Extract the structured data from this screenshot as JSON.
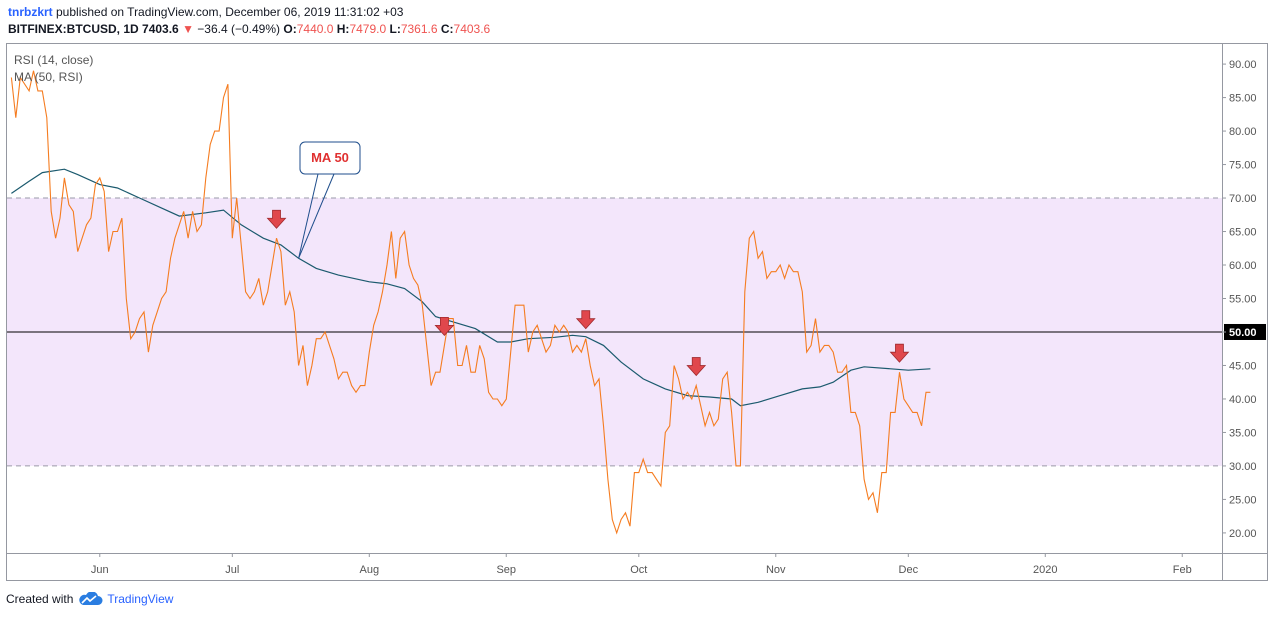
{
  "header": {
    "author": "tnrbzkrt",
    "published_text": " published on TradingView.com, December 06, 2019 11:31:02 +03",
    "symbol": "BITFINEX:BTCUSD, 1D",
    "price": "7403.6",
    "change": "−36.4 (−0.49%)",
    "o_label": "O:",
    "o": "7440.0",
    "h_label": "H:",
    "h": "7479.0",
    "l_label": "L:",
    "l": "7361.6",
    "c_label": "C:",
    "c": "7403.6"
  },
  "footer": {
    "created_with": "Created with",
    "brand": "TradingView"
  },
  "colors": {
    "rsi": "#f57c20",
    "ma": "#1b5a6e",
    "band": "#f3e6fb",
    "marker": "#e0474c",
    "accent": "#2962ff"
  },
  "chart_data": {
    "type": "line",
    "legend": [
      "RSI (14, close)",
      "MA (50, RSI)"
    ],
    "callout": "MA 50",
    "ylim": [
      17,
      93
    ],
    "yticks": [
      "20.00",
      "25.00",
      "30.00",
      "35.00",
      "40.00",
      "45.00",
      "50.00",
      "55.00",
      "60.00",
      "65.00",
      "70.00",
      "75.00",
      "80.00",
      "85.00",
      "90.00"
    ],
    "highlight_tick": "50.00",
    "bands": {
      "upper": 70,
      "lower": 30,
      "middle": 50
    },
    "x_axis": [
      {
        "label": "Jun",
        "date": "2019-06-01"
      },
      {
        "label": "Jul",
        "date": "2019-07-01"
      },
      {
        "label": "Aug",
        "date": "2019-08-01"
      },
      {
        "label": "Sep",
        "date": "2019-09-01"
      },
      {
        "label": "Oct",
        "date": "2019-10-01"
      },
      {
        "label": "Nov",
        "date": "2019-11-01"
      },
      {
        "label": "Dec",
        "date": "2019-12-01"
      },
      {
        "label": "2020",
        "date": "2020-01-01"
      },
      {
        "label": "Feb",
        "date": "2020-02-01"
      }
    ],
    "x_range": [
      "2019-05-11",
      "2020-02-10"
    ],
    "series": [
      {
        "name": "RSI (14, close)",
        "points": [
          [
            "2019-05-12",
            88
          ],
          [
            "2019-05-13",
            82
          ],
          [
            "2019-05-14",
            88
          ],
          [
            "2019-05-16",
            86
          ],
          [
            "2019-05-17",
            89
          ],
          [
            "2019-05-18",
            86
          ],
          [
            "2019-05-19",
            86
          ],
          [
            "2019-05-20",
            82
          ],
          [
            "2019-05-21",
            68
          ],
          [
            "2019-05-22",
            64
          ],
          [
            "2019-05-23",
            67
          ],
          [
            "2019-05-24",
            73
          ],
          [
            "2019-05-25",
            69
          ],
          [
            "2019-05-26",
            68
          ],
          [
            "2019-05-27",
            62
          ],
          [
            "2019-05-28",
            64
          ],
          [
            "2019-05-29",
            66
          ],
          [
            "2019-05-30",
            67
          ],
          [
            "2019-05-31",
            72
          ],
          [
            "2019-06-01",
            73
          ],
          [
            "2019-06-02",
            71
          ],
          [
            "2019-06-03",
            62
          ],
          [
            "2019-06-04",
            65
          ],
          [
            "2019-06-05",
            65
          ],
          [
            "2019-06-06",
            67
          ],
          [
            "2019-06-07",
            55
          ],
          [
            "2019-06-08",
            49
          ],
          [
            "2019-06-09",
            50
          ],
          [
            "2019-06-10",
            52
          ],
          [
            "2019-06-11",
            53
          ],
          [
            "2019-06-12",
            47
          ],
          [
            "2019-06-13",
            51
          ],
          [
            "2019-06-14",
            53
          ],
          [
            "2019-06-15",
            55
          ],
          [
            "2019-06-16",
            56
          ],
          [
            "2019-06-17",
            61
          ],
          [
            "2019-06-18",
            64
          ],
          [
            "2019-06-19",
            66
          ],
          [
            "2019-06-20",
            68
          ],
          [
            "2019-06-21",
            64
          ],
          [
            "2019-06-22",
            68
          ],
          [
            "2019-06-23",
            65
          ],
          [
            "2019-06-24",
            66
          ],
          [
            "2019-06-25",
            73
          ],
          [
            "2019-06-26",
            78
          ],
          [
            "2019-06-27",
            80
          ],
          [
            "2019-06-28",
            80
          ],
          [
            "2019-06-29",
            85
          ],
          [
            "2019-06-30",
            87
          ],
          [
            "2019-07-01",
            64
          ],
          [
            "2019-07-02",
            70
          ],
          [
            "2019-07-03",
            63
          ],
          [
            "2019-07-04",
            56
          ],
          [
            "2019-07-05",
            55
          ],
          [
            "2019-07-06",
            56
          ],
          [
            "2019-07-07",
            58
          ],
          [
            "2019-07-08",
            54
          ],
          [
            "2019-07-09",
            56
          ],
          [
            "2019-07-10",
            60
          ],
          [
            "2019-07-11",
            64
          ],
          [
            "2019-07-12",
            62
          ],
          [
            "2019-07-13",
            54
          ],
          [
            "2019-07-14",
            56
          ],
          [
            "2019-07-15",
            53
          ],
          [
            "2019-07-16",
            45
          ],
          [
            "2019-07-17",
            48
          ],
          [
            "2019-07-18",
            42
          ],
          [
            "2019-07-19",
            45
          ],
          [
            "2019-07-20",
            49
          ],
          [
            "2019-07-21",
            49
          ],
          [
            "2019-07-22",
            50
          ],
          [
            "2019-07-23",
            48
          ],
          [
            "2019-07-24",
            46
          ],
          [
            "2019-07-25",
            43
          ],
          [
            "2019-07-26",
            44
          ],
          [
            "2019-07-27",
            44
          ],
          [
            "2019-07-28",
            42
          ],
          [
            "2019-07-29",
            41
          ],
          [
            "2019-07-30",
            42
          ],
          [
            "2019-07-31",
            42
          ],
          [
            "2019-08-01",
            47
          ],
          [
            "2019-08-02",
            51
          ],
          [
            "2019-08-03",
            53
          ],
          [
            "2019-08-04",
            56
          ],
          [
            "2019-08-05",
            60
          ],
          [
            "2019-08-06",
            65
          ],
          [
            "2019-08-07",
            58
          ],
          [
            "2019-08-08",
            64
          ],
          [
            "2019-08-09",
            65
          ],
          [
            "2019-08-10",
            60
          ],
          [
            "2019-08-11",
            58
          ],
          [
            "2019-08-12",
            57
          ],
          [
            "2019-08-13",
            54
          ],
          [
            "2019-08-14",
            48
          ],
          [
            "2019-08-15",
            42
          ],
          [
            "2019-08-16",
            44
          ],
          [
            "2019-08-17",
            44
          ],
          [
            "2019-08-18",
            48
          ],
          [
            "2019-08-19",
            52
          ],
          [
            "2019-08-20",
            52
          ],
          [
            "2019-08-21",
            45
          ],
          [
            "2019-08-22",
            45
          ],
          [
            "2019-08-23",
            48
          ],
          [
            "2019-08-24",
            44
          ],
          [
            "2019-08-25",
            44
          ],
          [
            "2019-08-26",
            48
          ],
          [
            "2019-08-27",
            46
          ],
          [
            "2019-08-28",
            41
          ],
          [
            "2019-08-29",
            40
          ],
          [
            "2019-08-30",
            40
          ],
          [
            "2019-08-31",
            39
          ],
          [
            "2019-09-01",
            40
          ],
          [
            "2019-09-02",
            47
          ],
          [
            "2019-09-03",
            54
          ],
          [
            "2019-09-04",
            54
          ],
          [
            "2019-09-05",
            54
          ],
          [
            "2019-09-06",
            47
          ],
          [
            "2019-09-07",
            50
          ],
          [
            "2019-09-08",
            51
          ],
          [
            "2019-09-09",
            49
          ],
          [
            "2019-09-10",
            47
          ],
          [
            "2019-09-11",
            48
          ],
          [
            "2019-09-12",
            51
          ],
          [
            "2019-09-13",
            50
          ],
          [
            "2019-09-14",
            51
          ],
          [
            "2019-09-15",
            50
          ],
          [
            "2019-09-16",
            47
          ],
          [
            "2019-09-17",
            48
          ],
          [
            "2019-09-18",
            47
          ],
          [
            "2019-09-19",
            49
          ],
          [
            "2019-09-20",
            45
          ],
          [
            "2019-09-21",
            42
          ],
          [
            "2019-09-22",
            43
          ],
          [
            "2019-09-23",
            36
          ],
          [
            "2019-09-24",
            28
          ],
          [
            "2019-09-25",
            22
          ],
          [
            "2019-09-26",
            20
          ],
          [
            "2019-09-27",
            22
          ],
          [
            "2019-09-28",
            23
          ],
          [
            "2019-09-29",
            21
          ],
          [
            "2019-09-30",
            29
          ],
          [
            "2019-10-01",
            29
          ],
          [
            "2019-10-02",
            31
          ],
          [
            "2019-10-03",
            29
          ],
          [
            "2019-10-04",
            29
          ],
          [
            "2019-10-05",
            28
          ],
          [
            "2019-10-06",
            27
          ],
          [
            "2019-10-07",
            35
          ],
          [
            "2019-10-08",
            36
          ],
          [
            "2019-10-09",
            45
          ],
          [
            "2019-10-10",
            43
          ],
          [
            "2019-10-11",
            40
          ],
          [
            "2019-10-12",
            41
          ],
          [
            "2019-10-13",
            40
          ],
          [
            "2019-10-14",
            42
          ],
          [
            "2019-10-15",
            39
          ],
          [
            "2019-10-16",
            36
          ],
          [
            "2019-10-17",
            38
          ],
          [
            "2019-10-18",
            36
          ],
          [
            "2019-10-19",
            37
          ],
          [
            "2019-10-20",
            43
          ],
          [
            "2019-10-21",
            44
          ],
          [
            "2019-10-22",
            38
          ],
          [
            "2019-10-23",
            30
          ],
          [
            "2019-10-24",
            30
          ],
          [
            "2019-10-25",
            56
          ],
          [
            "2019-10-26",
            64
          ],
          [
            "2019-10-27",
            65
          ],
          [
            "2019-10-28",
            61
          ],
          [
            "2019-10-29",
            62
          ],
          [
            "2019-10-30",
            58
          ],
          [
            "2019-10-31",
            59
          ],
          [
            "2019-11-01",
            59
          ],
          [
            "2019-11-02",
            60
          ],
          [
            "2019-11-03",
            58
          ],
          [
            "2019-11-04",
            60
          ],
          [
            "2019-11-05",
            59
          ],
          [
            "2019-11-06",
            59
          ],
          [
            "2019-11-07",
            56
          ],
          [
            "2019-11-08",
            47
          ],
          [
            "2019-11-09",
            48
          ],
          [
            "2019-11-10",
            52
          ],
          [
            "2019-11-11",
            47
          ],
          [
            "2019-11-12",
            48
          ],
          [
            "2019-11-13",
            48
          ],
          [
            "2019-11-14",
            47
          ],
          [
            "2019-11-15",
            44
          ],
          [
            "2019-11-16",
            44
          ],
          [
            "2019-11-17",
            45
          ],
          [
            "2019-11-18",
            38
          ],
          [
            "2019-11-19",
            38
          ],
          [
            "2019-11-20",
            36
          ],
          [
            "2019-11-21",
            28
          ],
          [
            "2019-11-22",
            25
          ],
          [
            "2019-11-23",
            26
          ],
          [
            "2019-11-24",
            23
          ],
          [
            "2019-11-25",
            29
          ],
          [
            "2019-11-26",
            29
          ],
          [
            "2019-11-27",
            38
          ],
          [
            "2019-11-28",
            38
          ],
          [
            "2019-11-29",
            44
          ],
          [
            "2019-11-30",
            40
          ],
          [
            "2019-12-01",
            39
          ],
          [
            "2019-12-02",
            38
          ],
          [
            "2019-12-03",
            38
          ],
          [
            "2019-12-04",
            36
          ],
          [
            "2019-12-05",
            41
          ],
          [
            "2019-12-06",
            41
          ]
        ]
      },
      {
        "name": "MA (50, RSI)",
        "points": [
          [
            "2019-05-12",
            70.7
          ],
          [
            "2019-05-16",
            72.5
          ],
          [
            "2019-05-19",
            73.8
          ],
          [
            "2019-05-24",
            74.3
          ],
          [
            "2019-05-27",
            73.5
          ],
          [
            "2019-06-01",
            72
          ],
          [
            "2019-06-05",
            71.5
          ],
          [
            "2019-06-10",
            70
          ],
          [
            "2019-06-15",
            68.5
          ],
          [
            "2019-06-19",
            67.3
          ],
          [
            "2019-06-25",
            67.8
          ],
          [
            "2019-06-29",
            68.2
          ],
          [
            "2019-07-03",
            66
          ],
          [
            "2019-07-08",
            64
          ],
          [
            "2019-07-12",
            63
          ],
          [
            "2019-07-16",
            61
          ],
          [
            "2019-07-20",
            59.5
          ],
          [
            "2019-07-25",
            58.5
          ],
          [
            "2019-08-01",
            57.5
          ],
          [
            "2019-08-05",
            57.2
          ],
          [
            "2019-08-09",
            56.5
          ],
          [
            "2019-08-13",
            54.5
          ],
          [
            "2019-08-16",
            52.3
          ],
          [
            "2019-08-20",
            51.5
          ],
          [
            "2019-08-25",
            50.5
          ],
          [
            "2019-08-30",
            48.5
          ],
          [
            "2019-09-02",
            48.5
          ],
          [
            "2019-09-06",
            49
          ],
          [
            "2019-09-12",
            49.2
          ],
          [
            "2019-09-16",
            49.5
          ],
          [
            "2019-09-19",
            49.3
          ],
          [
            "2019-09-23",
            48
          ],
          [
            "2019-09-27",
            45.5
          ],
          [
            "2019-10-02",
            43
          ],
          [
            "2019-10-07",
            41.5
          ],
          [
            "2019-10-12",
            40.5
          ],
          [
            "2019-10-17",
            40.3
          ],
          [
            "2019-10-22",
            40
          ],
          [
            "2019-10-24",
            39
          ],
          [
            "2019-10-28",
            39.5
          ],
          [
            "2019-11-02",
            40.5
          ],
          [
            "2019-11-07",
            41.5
          ],
          [
            "2019-11-11",
            41.8
          ],
          [
            "2019-11-14",
            42.5
          ],
          [
            "2019-11-18",
            44.3
          ],
          [
            "2019-11-21",
            44.8
          ],
          [
            "2019-11-27",
            44.5
          ],
          [
            "2019-12-01",
            44.3
          ],
          [
            "2019-12-06",
            44.5
          ]
        ]
      }
    ],
    "markers": [
      "2019-07-11",
      "2019-08-18",
      "2019-09-19",
      "2019-10-14",
      "2019-11-29"
    ]
  }
}
